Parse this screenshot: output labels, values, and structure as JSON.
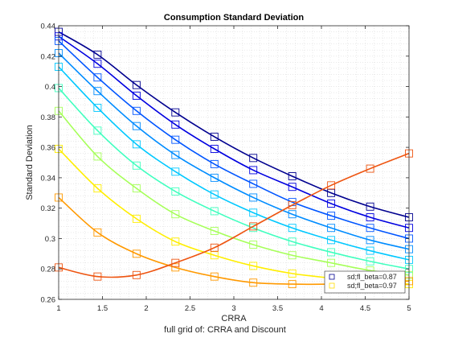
{
  "footer": "full grid of: CRRA and Discount",
  "chart_data": {
    "type": "line",
    "title": "Consumption Standard Deviation",
    "xlabel": "CRRA",
    "ylabel": "Standard Deviation",
    "xlim": [
      1,
      5
    ],
    "ylim": [
      0.26,
      0.44
    ],
    "xticks": [
      "1",
      "1.5",
      "2",
      "2.5",
      "3",
      "3.5",
      "4",
      "4.5",
      "5"
    ],
    "yticks": [
      "0.26",
      "0.28",
      "0.3",
      "0.32",
      "0.34",
      "0.36",
      "0.38",
      "0.4",
      "0.42",
      "0.44"
    ],
    "grid": "minor dotted",
    "marker": "square",
    "legend_position": "bottom-right",
    "legend": [
      "sd;fl_beta=0.87",
      "sd;fl_beta=0.97"
    ],
    "x": [
      1,
      1.444,
      1.889,
      2.333,
      2.778,
      3.222,
      3.667,
      4.111,
      4.556,
      5
    ],
    "series": [
      {
        "color": "#00008f",
        "values": [
          0.436,
          0.421,
          0.401,
          0.383,
          0.367,
          0.353,
          0.341,
          0.33,
          0.321,
          0.314
        ]
      },
      {
        "color": "#0000e0",
        "values": [
          0.433,
          0.415,
          0.394,
          0.375,
          0.359,
          0.345,
          0.334,
          0.323,
          0.314,
          0.307
        ]
      },
      {
        "color": "#0055ff",
        "values": [
          0.43,
          0.406,
          0.384,
          0.365,
          0.349,
          0.336,
          0.324,
          0.315,
          0.307,
          0.3
        ]
      },
      {
        "color": "#008cff",
        "values": [
          0.422,
          0.397,
          0.374,
          0.355,
          0.34,
          0.327,
          0.316,
          0.307,
          0.299,
          0.293
        ]
      },
      {
        "color": "#00c8ff",
        "values": [
          0.413,
          0.386,
          0.362,
          0.344,
          0.329,
          0.317,
          0.307,
          0.299,
          0.292,
          0.286
        ]
      },
      {
        "color": "#40ffbf",
        "values": [
          0.399,
          0.371,
          0.348,
          0.331,
          0.318,
          0.307,
          0.298,
          0.291,
          0.285,
          0.28
        ]
      },
      {
        "color": "#a6ff59",
        "values": [
          0.384,
          0.354,
          0.333,
          0.316,
          0.305,
          0.296,
          0.289,
          0.284,
          0.279,
          0.276
        ]
      },
      {
        "color": "#ffee00",
        "values": [
          0.359,
          0.333,
          0.313,
          0.298,
          0.289,
          0.282,
          0.277,
          0.274,
          0.272,
          0.27
        ]
      },
      {
        "color": "#ff9900",
        "values": [
          0.327,
          0.304,
          0.29,
          0.281,
          0.275,
          0.271,
          0.27,
          0.27,
          0.271,
          0.272
        ]
      },
      {
        "color": "#ee5511",
        "values": [
          0.281,
          0.275,
          0.276,
          0.284,
          0.294,
          0.308,
          0.322,
          0.335,
          0.346,
          0.356
        ]
      }
    ]
  }
}
